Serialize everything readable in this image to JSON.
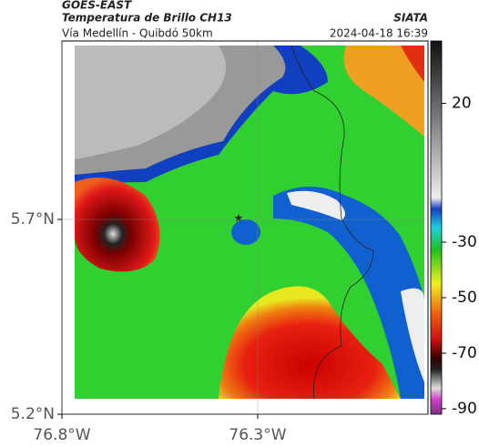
{
  "header": {
    "source": "GOES-EAST",
    "title": "Temperatura de Brillo CH13",
    "credit": "SIATA",
    "subtitle": "Vía Medellín - Quibdó 50km",
    "timestamp": "2024-04-18 16:39"
  },
  "map": {
    "xlim": [
      -76.8,
      -75.865
    ],
    "ylim": [
      5.2,
      6.158
    ],
    "xticks": [
      {
        "value": -76.8,
        "label": "76.8°W"
      },
      {
        "value": -76.3,
        "label": "76.3°W"
      }
    ],
    "yticks": [
      {
        "value": 5.2,
        "label": "5.2°N"
      },
      {
        "value": 5.7,
        "label": "5.7°N"
      }
    ]
  },
  "colorbar": {
    "lim": [
      -92,
      42.5
    ],
    "ticks": [
      20,
      -30,
      -50,
      -70,
      -90
    ]
  }
}
